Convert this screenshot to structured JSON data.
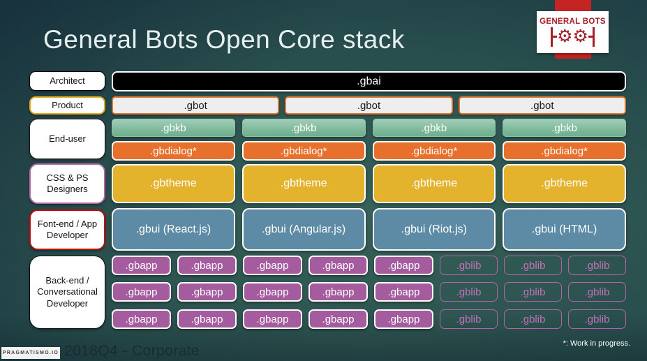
{
  "title": "General Bots Open Core stack",
  "logo": {
    "brand": "GENERAL BOTS"
  },
  "roles": [
    {
      "label": "Architect"
    },
    {
      "label": "Product"
    },
    {
      "label": "End-user"
    },
    {
      "label": "CSS & PS Designers"
    },
    {
      "label": "Font-end / App Developer"
    },
    {
      "label": "Back-end / Conversational Developer"
    }
  ],
  "stack": {
    "gbai": ".gbai",
    "gbot": [
      ".gbot",
      ".gbot",
      ".gbot"
    ],
    "gbkb": [
      ".gbkb",
      ".gbkb",
      ".gbkb",
      ".gbkb"
    ],
    "gbdialog": [
      ".gbdialog*",
      ".gbdialog*",
      ".gbdialog*",
      ".gbdialog*"
    ],
    "gbtheme": [
      ".gbtheme",
      ".gbtheme",
      ".gbtheme",
      ".gbtheme"
    ],
    "gbui": [
      ".gbui (React.js)",
      ".gbui (Angular.js)",
      ".gbui (Riot.js)",
      ".gbui (HTML)"
    ],
    "gbapp_rows": [
      {
        "gbapp": [
          ".gbapp",
          ".gbapp",
          ".gbapp",
          ".gbapp",
          ".gbapp"
        ],
        "gblib": [
          ".gblib",
          ".gblib",
          ".gblib"
        ]
      },
      {
        "gbapp": [
          ".gbapp",
          ".gbapp",
          ".gbapp",
          ".gbapp",
          ".gbapp"
        ],
        "gblib": [
          ".gblib",
          ".gblib",
          ".gblib"
        ]
      },
      {
        "gbapp": [
          ".gbapp",
          ".gbapp",
          ".gbapp",
          ".gbapp",
          ".gbapp"
        ],
        "gblib": [
          ".gblib",
          ".gblib",
          ".gblib"
        ]
      }
    ]
  },
  "footer": {
    "brand": "PRAGMATISMO.IO",
    "edition": "2018Q4 - Corporate",
    "note": "*: Work in progress."
  },
  "colors": {
    "background_center": "#376159",
    "background_edge": "#162e3a",
    "gbai_fill": "#000000",
    "gbot_fill": "#eeeeee",
    "gbot_border": "#e0762f",
    "gbkb_fill": "#7ab697",
    "gbdialog_fill": "#e8702d",
    "gbtheme_fill": "#e3b32d",
    "gbui_fill": "#5d8ba5",
    "gbapp_fill": "#a55c9f",
    "gblib_outline": "#b264aa",
    "ribbon_red": "#c42523",
    "logo_red": "#a32026",
    "role_product_border": "#e7a922",
    "role_css_border": "#b468ac",
    "role_frontend_border": "#c00b0e"
  }
}
